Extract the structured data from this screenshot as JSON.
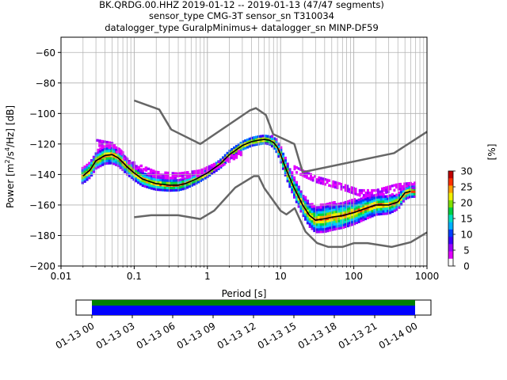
{
  "chart_data": {
    "type": "heatmap",
    "title_lines": [
      "BK.QRDG.00.HHZ   2019-01-12 -- 2019-01-13  (47/47 segments)",
      "sensor_type CMG-3T sensor_sn T310034",
      "datalogger_type GuralpMinimus+ datalogger_sn MINP-DF59"
    ],
    "xlabel": "Period [s]",
    "ylabel_parts": [
      "Power [m",
      "2",
      "/s",
      "4",
      "/Hz] [dB]"
    ],
    "x_scale": "log",
    "xlim": [
      0.01,
      1000
    ],
    "ylim": [
      -200,
      -50
    ],
    "x_ticks": [
      0.01,
      0.1,
      1,
      10,
      100,
      1000
    ],
    "x_tick_labels": [
      "0.01",
      "0.1",
      "1",
      "10",
      "100",
      "1000"
    ],
    "y_ticks": [
      -200,
      -180,
      -160,
      -140,
      -120,
      -100,
      -80,
      -60
    ],
    "grid": true,
    "colorbar": {
      "label": "[%]",
      "range": [
        0,
        30
      ],
      "ticks": [
        0,
        5,
        10,
        15,
        20,
        25,
        30
      ],
      "colors": [
        "#ffffff",
        "#e200ff",
        "#9b00ff",
        "#3a00ff",
        "#0040ff",
        "#00b0ff",
        "#00e0c0",
        "#00d040",
        "#80e000",
        "#f0f000",
        "#ffa000",
        "#ff3000",
        "#c00000"
      ]
    },
    "noise_models": [
      {
        "name": "nhnm",
        "color": "#666666",
        "x": [
          0.1,
          0.22,
          0.32,
          0.8,
          3.8,
          4.6,
          6.3,
          7.9,
          15.4,
          20,
          354.8,
          1000
        ],
        "y": [
          -91.5,
          -97.4,
          -110.5,
          -120.0,
          -98.0,
          -96.5,
          -101.0,
          -113.5,
          -120.0,
          -138.5,
          -126.0,
          -112.0
        ]
      },
      {
        "name": "nlnm",
        "color": "#666666",
        "x": [
          0.1,
          0.17,
          0.4,
          0.8,
          1.24,
          2.4,
          4.3,
          5.0,
          6.0,
          10.0,
          12.0,
          15.6,
          21.9,
          31.6,
          45.0,
          70.0,
          101.0,
          154.0,
          328.0,
          600.0,
          1000.0
        ],
        "y": [
          -168.0,
          -166.7,
          -166.7,
          -169.2,
          -163.7,
          -148.6,
          -141.1,
          -141.1,
          -149.0,
          -163.8,
          -166.2,
          -162.1,
          -177.5,
          -185.0,
          -187.5,
          -187.5,
          -185.0,
          -185.0,
          -187.5,
          -184.4,
          -178.0
        ]
      }
    ],
    "mode": {
      "name": "mode",
      "color": "#000000",
      "x": [
        0.02,
        0.025,
        0.03,
        0.04,
        0.05,
        0.06,
        0.07,
        0.08,
        0.1,
        0.13,
        0.17,
        0.2,
        0.3,
        0.4,
        0.5,
        0.7,
        1.0,
        1.5,
        2.0,
        3.0,
        4.0,
        5.0,
        6.0,
        7.0,
        8.0,
        9.0,
        10.0,
        12.0,
        15.0,
        20.0,
        25.0,
        30.0,
        40.0,
        50.0,
        70.0,
        100.0,
        150.0,
        200.0,
        300.0,
        400.0,
        500.0,
        600.0
      ],
      "y": [
        -141.0,
        -137.0,
        -131.0,
        -127.5,
        -127.0,
        -129.0,
        -132.0,
        -135.0,
        -139.0,
        -143.0,
        -145.0,
        -146.0,
        -147.0,
        -147.0,
        -146.0,
        -143.0,
        -139.0,
        -133.0,
        -127.0,
        -121.0,
        -118.5,
        -117.5,
        -117.0,
        -117.5,
        -119.0,
        -122.0,
        -127.0,
        -137.0,
        -148.0,
        -160.0,
        -167.0,
        -170.0,
        -169.0,
        -168.0,
        -167.0,
        -165.0,
        -162.0,
        -160.0,
        -160.0,
        -158.0,
        -152.0,
        -151.0
      ]
    },
    "heatmap": {
      "description_bins": "probability density shown as colored cells around the mode curve",
      "spread_db": [
        [
          0.02,
          5
        ],
        [
          0.05,
          6
        ],
        [
          0.1,
          5
        ],
        [
          0.3,
          4
        ],
        [
          1,
          3
        ],
        [
          3,
          3
        ],
        [
          7,
          3
        ],
        [
          12,
          6
        ],
        [
          20,
          7
        ],
        [
          40,
          9
        ],
        [
          100,
          8
        ],
        [
          300,
          6
        ],
        [
          600,
          4
        ]
      ],
      "upper_branch": {
        "x": [
          0.03,
          0.05,
          0.1,
          0.2,
          0.4,
          0.8,
          1.5,
          3.0
        ],
        "y": [
          -119.0,
          -121.0,
          -134.0,
          -140.0,
          -141.0,
          -139.0,
          -133.0,
          -125.0
        ]
      },
      "lower_branch": {
        "x": [
          15.0,
          20.0,
          30.0,
          50.0,
          80.0,
          120.0,
          200.0,
          400.0,
          700.0
        ],
        "y": [
          -136.0,
          -139.0,
          -143.0,
          -146.0,
          -149.0,
          -152.0,
          -152.0,
          -148.0,
          -147.0
        ]
      }
    },
    "coverage": {
      "range_start_label": "01-13 00",
      "tick_labels": [
        "01-13 00",
        "01-13 03",
        "01-13 06",
        "01-13 09",
        "01-13 12",
        "01-13 15",
        "01-13 18",
        "01-13 21",
        "01-14 00"
      ],
      "span_fraction": [
        0.0,
        1.0
      ],
      "bar_colors": [
        "#008000",
        "#0000ff"
      ]
    }
  }
}
